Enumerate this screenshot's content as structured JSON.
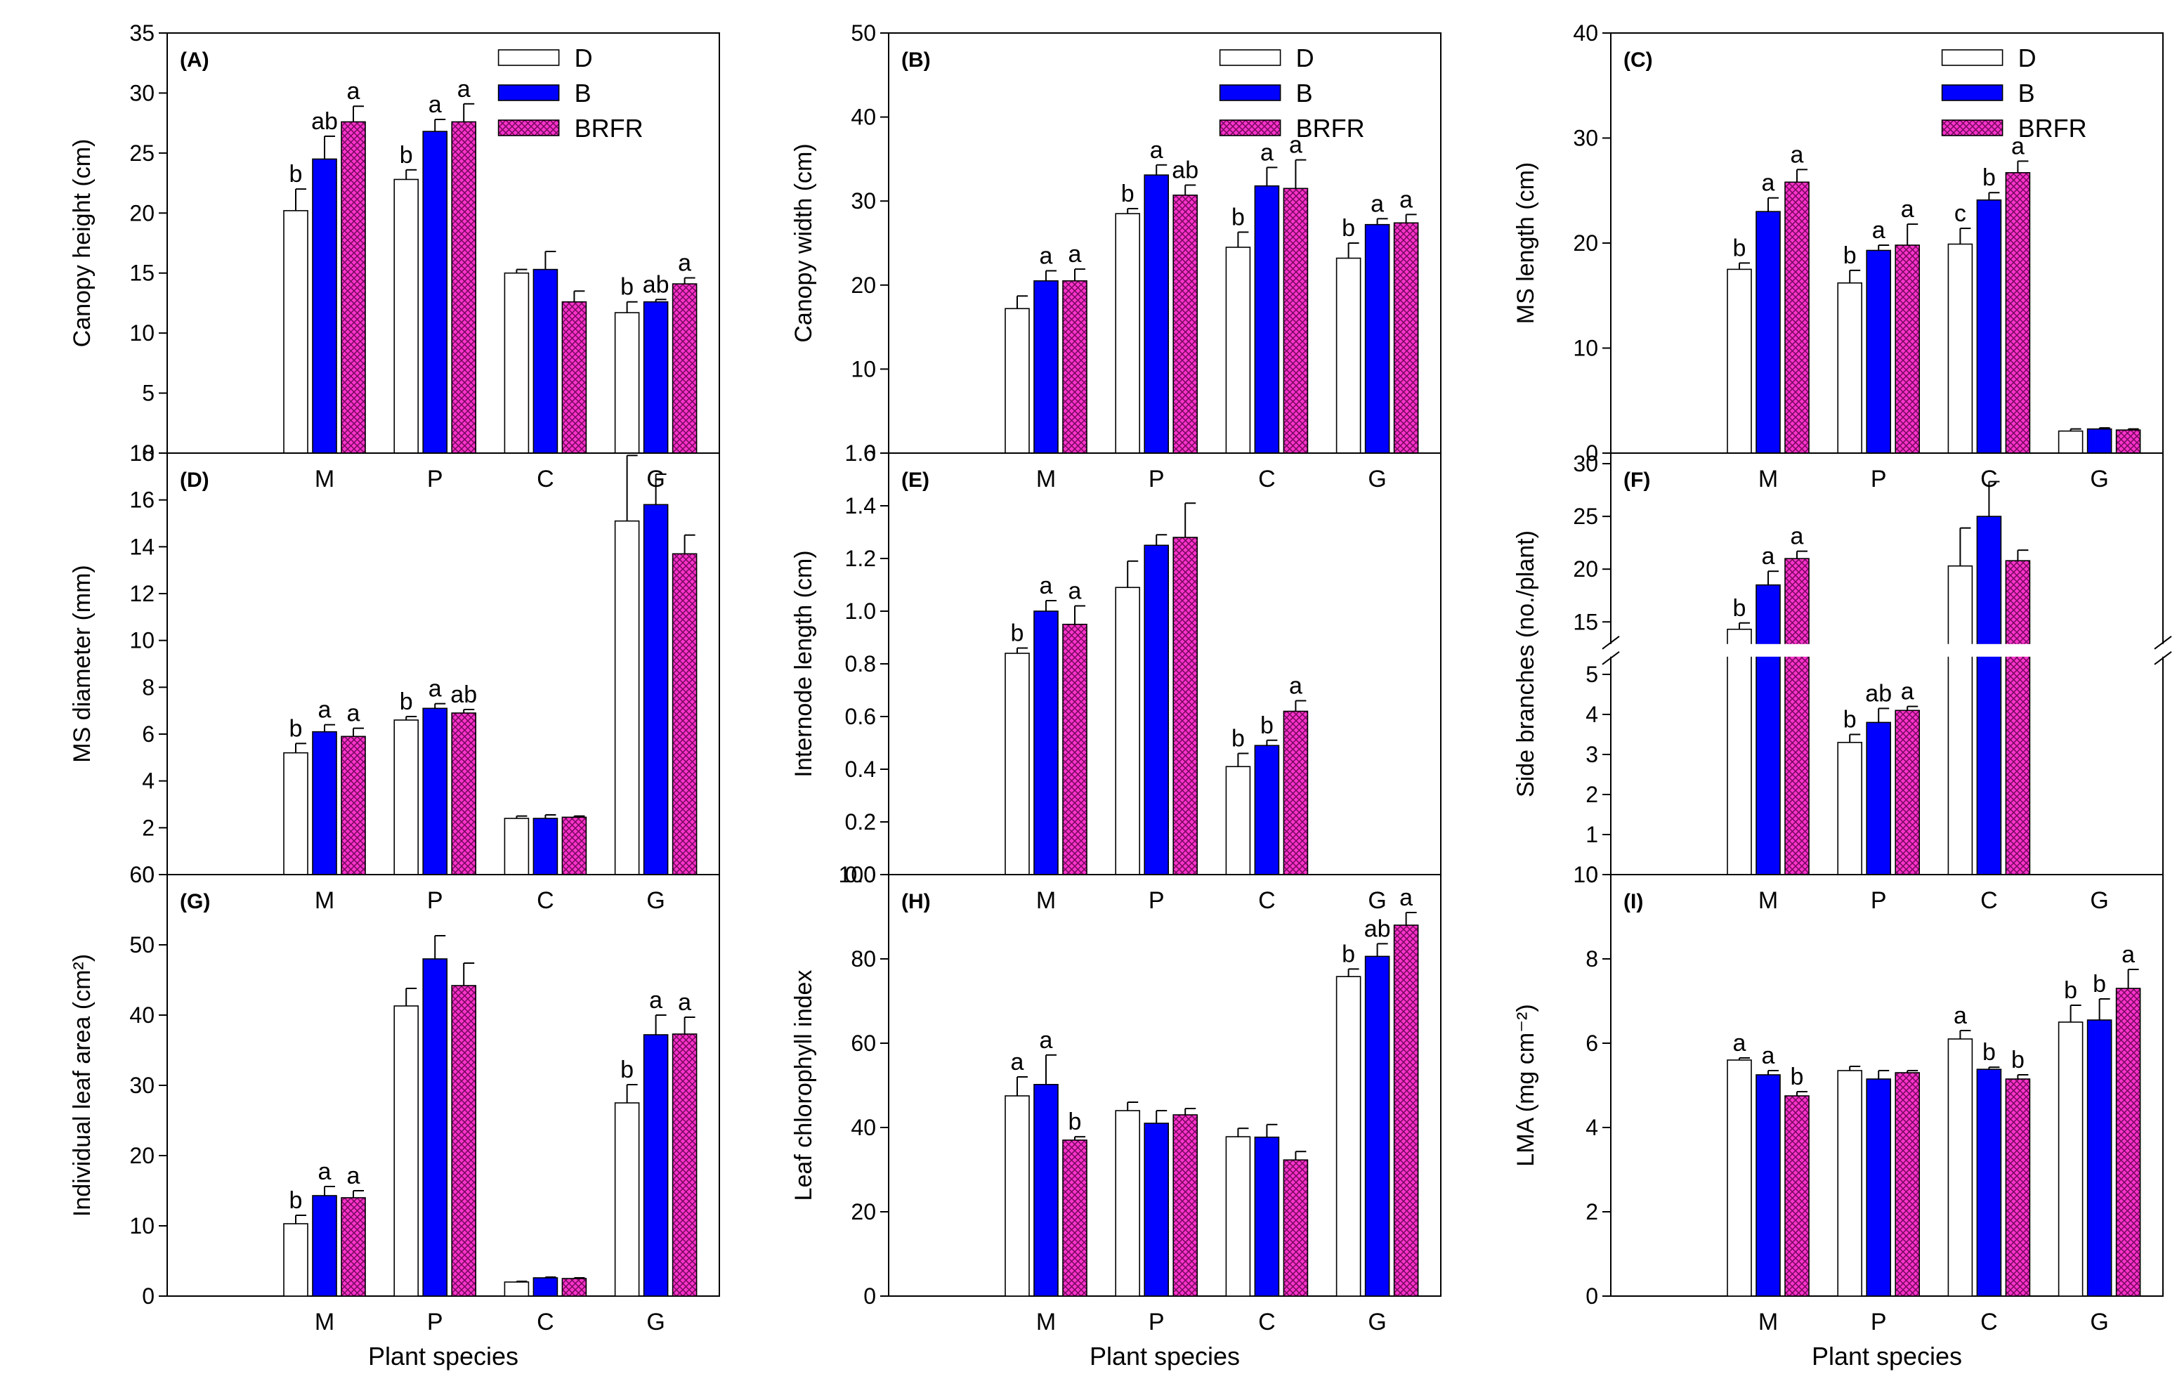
{
  "colors": {
    "D": "#ffffff",
    "B": "#0000ff",
    "BRFR": "#ff33cc",
    "BRFR_hatch": "#7a0a63",
    "axis": "#000000"
  },
  "legend_labels": [
    "D",
    "B",
    "BRFR"
  ],
  "chart_data": [
    {
      "panel": "(A)",
      "type": "bar",
      "ylabel": "Canopy height (cm)",
      "xlabel": "",
      "categories": [
        "M",
        "P",
        "C",
        "G"
      ],
      "ylim": [
        0,
        35
      ],
      "yticks": [
        0,
        5,
        10,
        15,
        20,
        25,
        30,
        35
      ],
      "legend": true,
      "series": [
        {
          "name": "D",
          "values": [
            20.2,
            22.8,
            15.0,
            11.7
          ],
          "errors": [
            1.8,
            0.8,
            0.3,
            0.9
          ],
          "letters": [
            "b",
            "b",
            "",
            "b"
          ]
        },
        {
          "name": "B",
          "values": [
            24.5,
            26.8,
            15.3,
            12.6
          ],
          "errors": [
            1.9,
            1.0,
            1.5,
            0.2
          ],
          "letters": [
            "ab",
            "a",
            "",
            "ab"
          ]
        },
        {
          "name": "BRFR",
          "values": [
            27.6,
            27.6,
            12.6,
            14.1
          ],
          "errors": [
            1.3,
            1.5,
            0.9,
            0.5
          ],
          "letters": [
            "a",
            "a",
            "",
            "a"
          ]
        }
      ]
    },
    {
      "panel": "(B)",
      "type": "bar",
      "ylabel": "Canopy width (cm)",
      "xlabel": "",
      "categories": [
        "M",
        "P",
        "C",
        "G"
      ],
      "ylim": [
        0,
        50
      ],
      "yticks": [
        0,
        10,
        20,
        30,
        40,
        50
      ],
      "legend": true,
      "series": [
        {
          "name": "D",
          "values": [
            17.2,
            28.5,
            24.5,
            23.2
          ],
          "errors": [
            1.5,
            0.6,
            1.8,
            1.8
          ],
          "letters": [
            "",
            "b",
            "b",
            "b"
          ]
        },
        {
          "name": "B",
          "values": [
            20.5,
            33.1,
            31.8,
            27.2
          ],
          "errors": [
            1.2,
            1.2,
            2.2,
            0.7
          ],
          "letters": [
            "a",
            "a",
            "a",
            "a"
          ]
        },
        {
          "name": "BRFR",
          "values": [
            20.5,
            30.7,
            31.5,
            27.4
          ],
          "errors": [
            1.4,
            1.2,
            3.4,
            1.0
          ],
          "letters": [
            "a",
            "ab",
            "a",
            "a"
          ]
        }
      ]
    },
    {
      "panel": "(C)",
      "type": "bar",
      "ylabel": "MS length (cm)",
      "xlabel": "",
      "categories": [
        "M",
        "P",
        "C",
        "G"
      ],
      "ylim": [
        0,
        40
      ],
      "yticks": [
        0,
        10,
        20,
        30,
        40
      ],
      "legend": true,
      "series": [
        {
          "name": "D",
          "values": [
            17.5,
            16.2,
            19.9,
            2.1
          ],
          "errors": [
            0.6,
            1.2,
            1.5,
            0.2
          ],
          "letters": [
            "b",
            "b",
            "c",
            ""
          ]
        },
        {
          "name": "B",
          "values": [
            23.0,
            19.3,
            24.1,
            2.3
          ],
          "errors": [
            1.3,
            0.5,
            0.7,
            0.1
          ],
          "letters": [
            "a",
            "a",
            "b",
            ""
          ]
        },
        {
          "name": "BRFR",
          "values": [
            25.8,
            19.8,
            26.7,
            2.2
          ],
          "errors": [
            1.2,
            2.0,
            1.1,
            0.1
          ],
          "letters": [
            "a",
            "a",
            "a",
            ""
          ]
        }
      ]
    },
    {
      "panel": "(D)",
      "type": "bar",
      "ylabel": "MS diameter (mm)",
      "xlabel": "",
      "categories": [
        "M",
        "P",
        "C",
        "G"
      ],
      "ylim": [
        0,
        18
      ],
      "yticks": [
        0,
        2,
        4,
        6,
        8,
        10,
        12,
        14,
        16,
        18
      ],
      "legend": false,
      "series": [
        {
          "name": "D",
          "values": [
            5.2,
            6.6,
            2.4,
            15.1
          ],
          "errors": [
            0.4,
            0.15,
            0.1,
            2.8
          ],
          "letters": [
            "b",
            "b",
            "",
            ""
          ]
        },
        {
          "name": "B",
          "values": [
            6.1,
            7.1,
            2.4,
            15.8
          ],
          "errors": [
            0.3,
            0.2,
            0.15,
            1.3
          ],
          "letters": [
            "a",
            "a",
            "",
            ""
          ]
        },
        {
          "name": "BRFR",
          "values": [
            5.9,
            6.9,
            2.45,
            13.7
          ],
          "errors": [
            0.35,
            0.15,
            0.05,
            0.8
          ],
          "letters": [
            "a",
            "ab",
            "",
            ""
          ]
        }
      ]
    },
    {
      "panel": "(E)",
      "type": "bar",
      "ylabel": "Internode length (cm)",
      "xlabel": "",
      "categories": [
        "M",
        "P",
        "C",
        "G"
      ],
      "ylim": [
        0,
        1.6
      ],
      "yticks": [
        0,
        0.2,
        0.4,
        0.6,
        0.8,
        1.0,
        1.2,
        1.4,
        1.6
      ],
      "ytick_labels": [
        "0.0",
        "0.2",
        "0.4",
        "0.6",
        "0.8",
        "1.0",
        "1.2",
        "1.4",
        "1.6"
      ],
      "legend": false,
      "series": [
        {
          "name": "D",
          "values": [
            0.84,
            1.09,
            0.41,
            null
          ],
          "errors": [
            0.02,
            0.1,
            0.05,
            0
          ],
          "letters": [
            "b",
            "",
            "b",
            ""
          ]
        },
        {
          "name": "B",
          "values": [
            1.0,
            1.25,
            0.49,
            null
          ],
          "errors": [
            0.04,
            0.04,
            0.02,
            0
          ],
          "letters": [
            "a",
            "",
            "b",
            ""
          ]
        },
        {
          "name": "BRFR",
          "values": [
            0.95,
            1.28,
            0.62,
            null
          ],
          "errors": [
            0.07,
            0.13,
            0.04,
            0
          ],
          "letters": [
            "a",
            "",
            "a",
            ""
          ]
        }
      ]
    },
    {
      "panel": "(F)",
      "type": "bar",
      "ylabel": "Side branches (no./plant)",
      "xlabel": "",
      "categories": [
        "M",
        "P",
        "C",
        "G"
      ],
      "broken_axis": true,
      "ylim_lower": [
        0,
        5.6
      ],
      "yticks_lower": [
        0,
        1,
        2,
        3,
        4,
        5
      ],
      "ylim_upper": [
        12.3,
        31
      ],
      "yticks_upper": [
        15,
        20,
        25,
        30
      ],
      "legend": false,
      "series": [
        {
          "name": "D",
          "values": [
            14.3,
            3.3,
            20.3,
            null
          ],
          "errors": [
            0.6,
            0.2,
            3.6,
            0
          ],
          "letters": [
            "b",
            "b",
            "",
            ""
          ]
        },
        {
          "name": "B",
          "values": [
            18.5,
            3.8,
            25.0,
            null
          ],
          "errors": [
            1.3,
            0.35,
            3.3,
            0
          ],
          "letters": [
            "a",
            "ab",
            "",
            ""
          ]
        },
        {
          "name": "BRFR",
          "values": [
            21.0,
            4.1,
            20.8,
            null
          ],
          "errors": [
            0.7,
            0.1,
            1.0,
            0
          ],
          "letters": [
            "a",
            "a",
            "",
            ""
          ]
        }
      ]
    },
    {
      "panel": "(G)",
      "type": "bar",
      "ylabel": "Individual leaf area (cm²)",
      "xlabel": "Plant species",
      "categories": [
        "M",
        "P",
        "C",
        "G"
      ],
      "ylim": [
        0,
        60
      ],
      "yticks": [
        0,
        10,
        20,
        30,
        40,
        50,
        60
      ],
      "legend": false,
      "series": [
        {
          "name": "D",
          "values": [
            10.3,
            41.3,
            2.0,
            27.5
          ],
          "errors": [
            1.2,
            2.5,
            0.1,
            2.6
          ],
          "letters": [
            "b",
            "",
            "",
            "b"
          ]
        },
        {
          "name": "B",
          "values": [
            14.3,
            48.0,
            2.6,
            37.2
          ],
          "errors": [
            1.3,
            3.3,
            0.1,
            2.8
          ],
          "letters": [
            "a",
            "",
            "",
            "a"
          ]
        },
        {
          "name": "BRFR",
          "values": [
            14.0,
            44.2,
            2.5,
            37.3
          ],
          "errors": [
            1.0,
            3.2,
            0.1,
            2.4
          ],
          "letters": [
            "a",
            "",
            "",
            "a"
          ]
        }
      ]
    },
    {
      "panel": "(H)",
      "type": "bar",
      "ylabel": "Leaf chlorophyll index",
      "xlabel": "Plant species",
      "categories": [
        "M",
        "P",
        "C",
        "G"
      ],
      "ylim": [
        0,
        100
      ],
      "yticks": [
        0,
        20,
        40,
        60,
        80,
        100
      ],
      "legend": false,
      "series": [
        {
          "name": "D",
          "values": [
            47.5,
            44.0,
            37.8,
            75.8
          ],
          "errors": [
            4.5,
            2.0,
            2.0,
            1.8
          ],
          "letters": [
            "a",
            "",
            "",
            "b"
          ]
        },
        {
          "name": "B",
          "values": [
            50.2,
            41.0,
            37.7,
            80.6
          ],
          "errors": [
            7.0,
            3.0,
            3.0,
            3.0
          ],
          "letters": [
            "a",
            "",
            "",
            "ab"
          ]
        },
        {
          "name": "BRFR",
          "values": [
            37.0,
            43.0,
            32.3,
            88.0
          ],
          "errors": [
            0.8,
            1.5,
            2.0,
            3.0
          ],
          "letters": [
            "b",
            "",
            "",
            "a"
          ]
        }
      ]
    },
    {
      "panel": "(I)",
      "type": "bar",
      "ylabel": "LMA (mg cm⁻²)",
      "xlabel": "Plant species",
      "categories": [
        "M",
        "P",
        "C",
        "G"
      ],
      "ylim": [
        0,
        10
      ],
      "yticks": [
        0,
        2,
        4,
        6,
        8,
        10
      ],
      "legend": false,
      "series": [
        {
          "name": "D",
          "values": [
            5.6,
            5.35,
            6.1,
            6.5
          ],
          "errors": [
            0.05,
            0.1,
            0.2,
            0.4
          ],
          "letters": [
            "a",
            "",
            "a",
            "b"
          ]
        },
        {
          "name": "B",
          "values": [
            5.25,
            5.15,
            5.38,
            6.55
          ],
          "errors": [
            0.1,
            0.2,
            0.05,
            0.5
          ],
          "letters": [
            "a",
            "",
            "b",
            "b"
          ]
        },
        {
          "name": "BRFR",
          "values": [
            4.75,
            5.3,
            5.15,
            7.3
          ],
          "errors": [
            0.1,
            0.05,
            0.1,
            0.45
          ],
          "letters": [
            "b",
            "",
            "b",
            "a"
          ]
        }
      ]
    }
  ]
}
